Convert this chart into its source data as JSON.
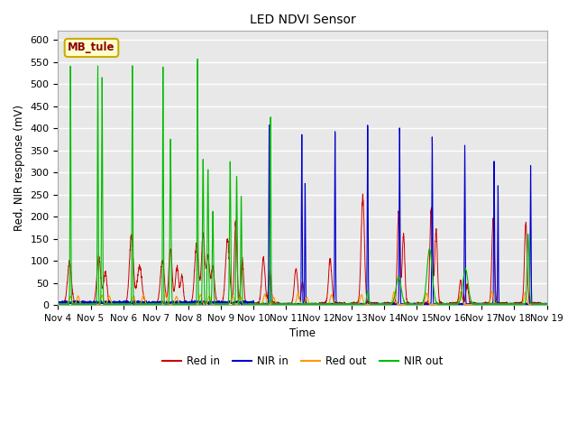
{
  "title": "LED NDVI Sensor",
  "ylabel": "Red, NIR response (mV)",
  "xlabel": "Time",
  "annotation": "MB_tule",
  "ylim": [
    0,
    620
  ],
  "fig_bg_color": "#ffffff",
  "plot_bg_color": "#e8e8e8",
  "grid_color": "#ffffff",
  "colors": {
    "red_in": "#cc0000",
    "nir_in": "#0000cc",
    "red_out": "#ff9900",
    "nir_out": "#00bb00"
  },
  "legend_labels": [
    "Red in",
    "NIR in",
    "Red out",
    "NIR out"
  ],
  "xtick_labels": [
    "Nov 4",
    "Nov 5",
    "Nov 6",
    "Nov 7",
    "Nov 8",
    "Nov 9",
    "Nov 10",
    "Nov 11",
    "Nov 12",
    "Nov 13",
    "Nov 14",
    "Nov 15",
    "Nov 16",
    "Nov 17",
    "Nov 18",
    "Nov 19"
  ],
  "ytick_vals": [
    0,
    50,
    100,
    150,
    200,
    250,
    300,
    350,
    400,
    450,
    500,
    550,
    600
  ],
  "seed": 42
}
